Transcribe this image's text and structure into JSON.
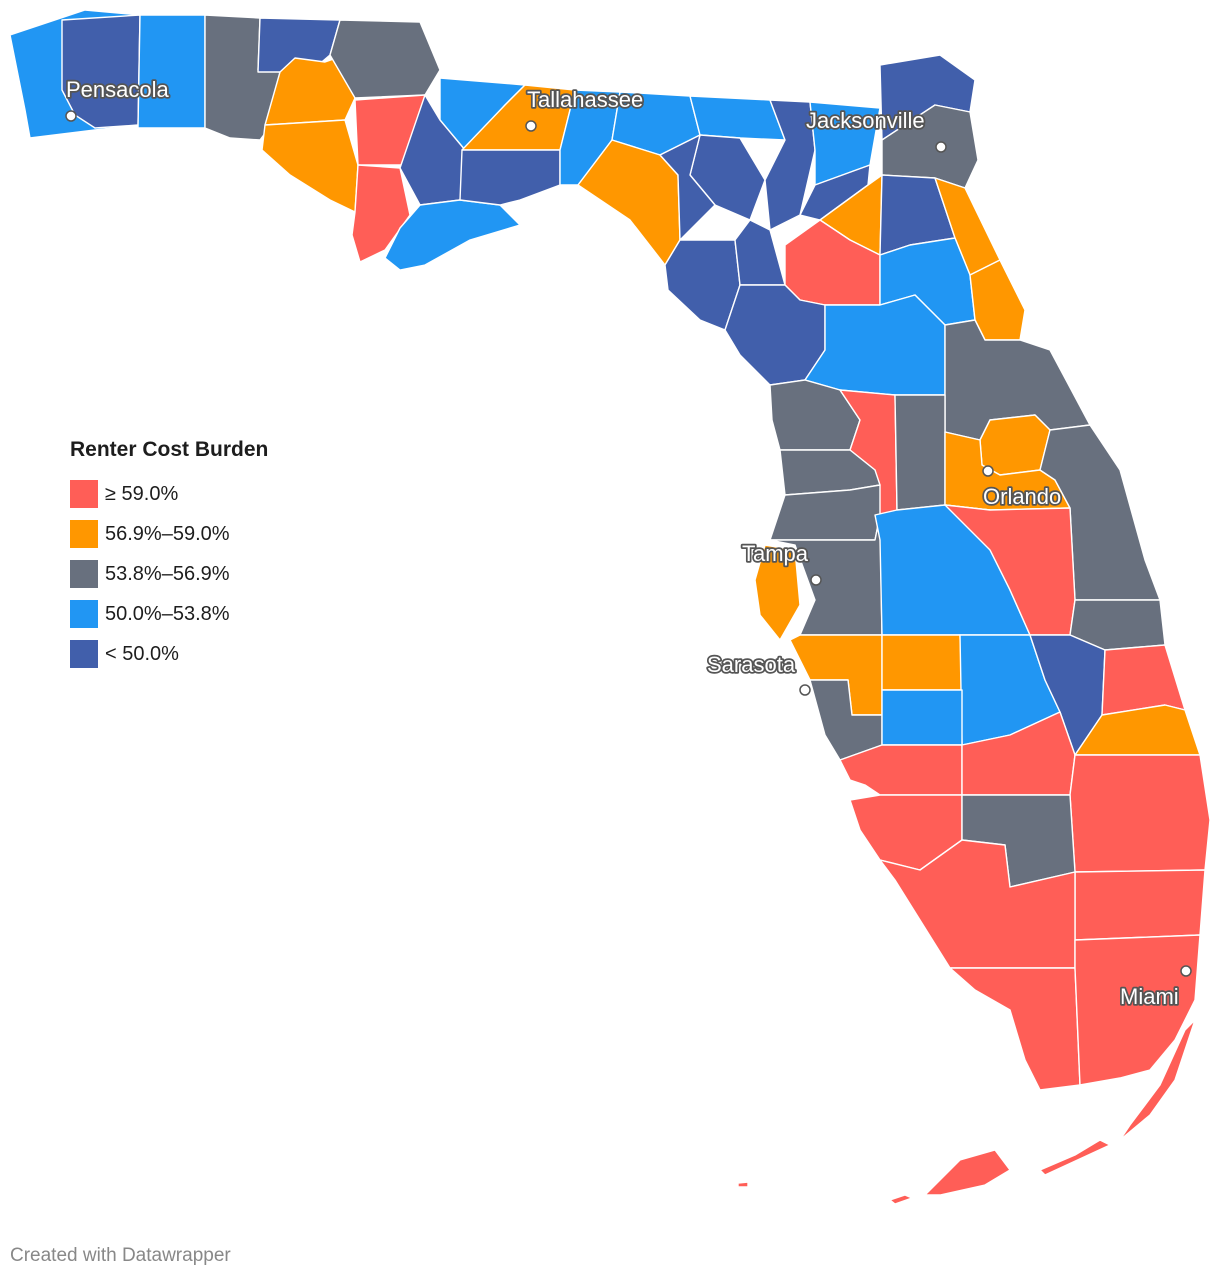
{
  "legend": {
    "title": "Renter Cost Burden",
    "items": [
      {
        "label": "≥ 59.0%",
        "color": "#ff5e57"
      },
      {
        "label": "56.9%–59.0%",
        "color": "#ff9700"
      },
      {
        "label": "53.8%–56.9%",
        "color": "#68707e"
      },
      {
        "label": "50.0%–53.8%",
        "color": "#2196f3"
      },
      {
        "label": "< 50.0%",
        "color": "#415fab"
      }
    ]
  },
  "cities": [
    {
      "name": "Pensacola"
    },
    {
      "name": "Tallahassee"
    },
    {
      "name": "Jacksonville"
    },
    {
      "name": "Orlando"
    },
    {
      "name": "Tampa"
    },
    {
      "name": "Sarasota"
    },
    {
      "name": "Miami"
    }
  ],
  "credit": "Created with Datawrapper"
}
